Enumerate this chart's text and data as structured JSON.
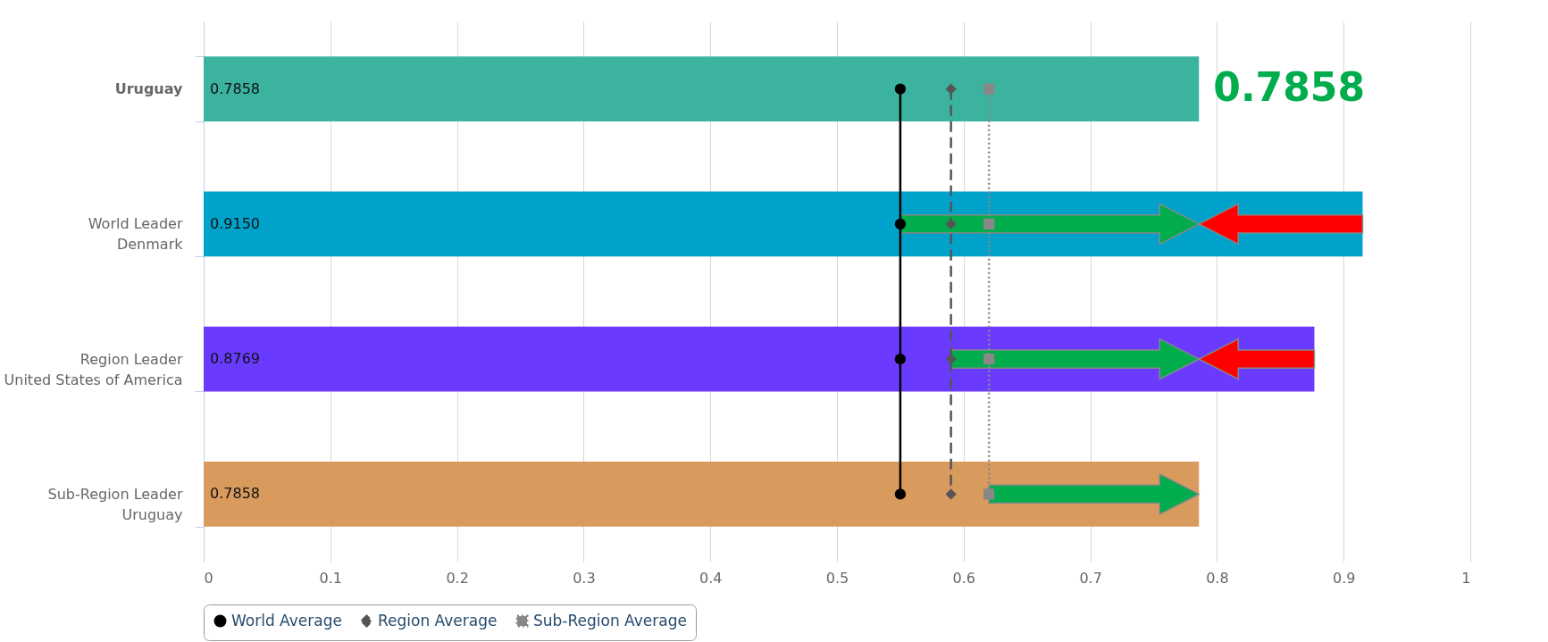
{
  "chart_data": {
    "type": "bar",
    "orientation": "horizontal",
    "categories": [
      "Uruguay",
      "World Leader\nDenmark",
      "Region Leader\nUnited States of America",
      "Sub-Region Leader\nUruguay"
    ],
    "values": [
      0.7858,
      0.915,
      0.8769,
      0.7858
    ],
    "value_labels": [
      "0.7858",
      "0.9150",
      "0.8769",
      "0.7858"
    ],
    "colors": [
      "#3bb39f",
      "#00a2c9",
      "#6a3bff",
      "#d99a5e"
    ],
    "series": [
      {
        "name": "World Average",
        "type": "line",
        "color": "#000000",
        "marker": "circle",
        "line_style": "solid",
        "values": [
          0.55,
          0.55,
          0.55,
          0.55
        ]
      },
      {
        "name": "Region Average",
        "type": "line",
        "color": "#555555",
        "marker": "diamond",
        "line_style": "dashed",
        "values": [
          0.59,
          0.59,
          0.59,
          0.59
        ]
      },
      {
        "name": "Sub-Region Average",
        "type": "line",
        "color": "#888888",
        "marker": "square",
        "line_style": "dotted",
        "values": [
          0.62,
          0.62,
          0.62,
          0.62
        ]
      }
    ],
    "annotations": [
      {
        "text": "0.7858",
        "x": 0.7858,
        "y": "Uruguay"
      }
    ],
    "xlim": [
      0,
      1
    ],
    "xticks": [
      0,
      0.1,
      0.2,
      0.3,
      0.4,
      0.5,
      0.6,
      0.7,
      0.8,
      0.9,
      1
    ],
    "grid": "x",
    "legend": "bottom"
  }
}
